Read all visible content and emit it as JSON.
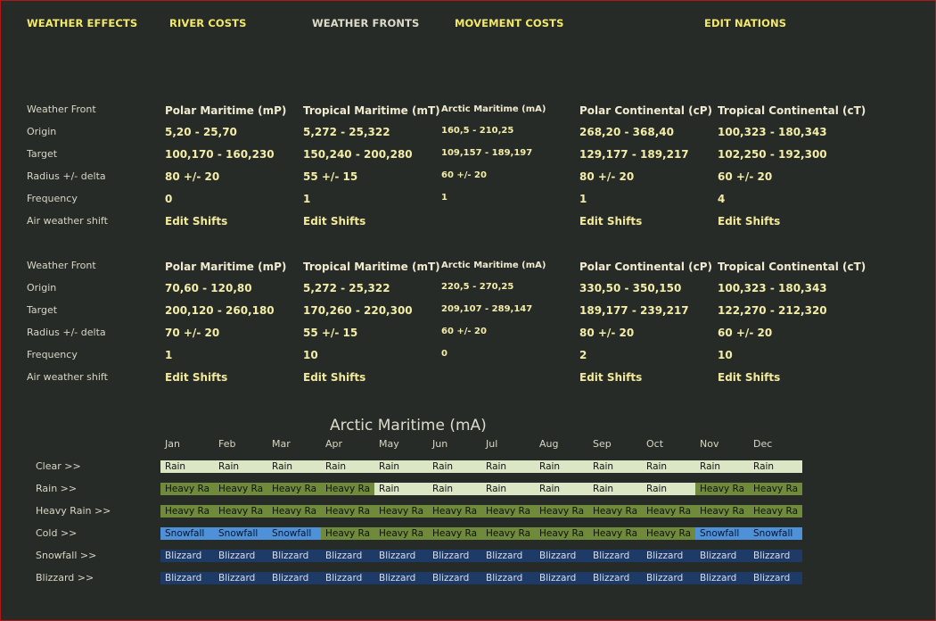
{
  "nav": [
    "WEATHER EFFECTS",
    "RIVER COSTS",
    "WEATHER FRONTS",
    "MOVEMENT COSTS",
    "EDIT NATIONS"
  ],
  "row_labels": [
    "Weather Front",
    "Origin",
    "Target",
    "Radius +/- delta",
    "Frequency",
    "Air weather shift"
  ],
  "groups": [
    {
      "columns": [
        {
          "name": "Polar Maritime (mP)",
          "origin": "5,20 - 25,70",
          "target": "100,170 - 160,230",
          "radius": "80 +/- 20",
          "frequency": "0",
          "air_shift": "Edit Shifts"
        },
        {
          "name": "Tropical Maritime (mT)",
          "origin": "5,272 - 25,322",
          "target": "150,240 - 200,280",
          "radius": "55 +/- 15",
          "frequency": "1",
          "air_shift": "Edit Shifts"
        },
        {
          "name": "Arctic Maritime (mA)",
          "origin": "160,5 - 210,25",
          "target": "109,157 - 189,197",
          "radius": "60 +/- 20",
          "frequency": "1",
          "air_shift": ""
        },
        {
          "name": "Polar Continental (cP)",
          "origin": "268,20 - 368,40",
          "target": "129,177 - 189,217",
          "radius": "80 +/- 20",
          "frequency": "1",
          "air_shift": "Edit Shifts"
        },
        {
          "name": "Tropical Continental (cT)",
          "origin": "100,323 - 180,343",
          "target": "102,250 - 192,300",
          "radius": "60 +/- 20",
          "frequency": "4",
          "air_shift": "Edit Shifts"
        }
      ]
    },
    {
      "columns": [
        {
          "name": "Polar Maritime (mP)",
          "origin": "70,60 - 120,80",
          "target": "200,120 - 260,180",
          "radius": "70 +/- 20",
          "frequency": "1",
          "air_shift": "Edit Shifts"
        },
        {
          "name": "Tropical Maritime (mT)",
          "origin": "5,272 - 25,322",
          "target": "170,260 - 220,300",
          "radius": "55 +/- 15",
          "frequency": "10",
          "air_shift": "Edit Shifts"
        },
        {
          "name": "Arctic Maritime (mA)",
          "origin": "220,5 - 270,25",
          "target": "209,107 - 289,147",
          "radius": "60 +/- 20",
          "frequency": "0",
          "air_shift": ""
        },
        {
          "name": "Polar Continental (cP)",
          "origin": "330,50 - 350,150",
          "target": "189,177 - 239,217",
          "radius": "80 +/- 20",
          "frequency": "2",
          "air_shift": "Edit Shifts"
        },
        {
          "name": "Tropical Continental (cT)",
          "origin": "100,323 - 180,343",
          "target": "122,270 - 212,320",
          "radius": "60 +/- 20",
          "frequency": "10",
          "air_shift": "Edit Shifts"
        }
      ]
    }
  ],
  "table": {
    "title": "Arctic Maritime (mA)",
    "months": [
      "Jan",
      "Feb",
      "Mar",
      "Apr",
      "May",
      "Jun",
      "Jul",
      "Aug",
      "Sep",
      "Oct",
      "Nov",
      "Dec"
    ],
    "rows": [
      {
        "label": "Clear >>",
        "cells": [
          "Rain",
          "Rain",
          "Rain",
          "Rain",
          "Rain",
          "Rain",
          "Rain",
          "Rain",
          "Rain",
          "Rain",
          "Rain",
          "Rain"
        ],
        "types": [
          "rain",
          "rain",
          "rain",
          "rain",
          "rain",
          "rain",
          "rain",
          "rain",
          "rain",
          "rain",
          "rain",
          "rain"
        ]
      },
      {
        "label": "Rain >>",
        "cells": [
          "Heavy Ra",
          "Heavy Ra",
          "Heavy Ra",
          "Heavy Ra",
          "Rain",
          "Rain",
          "Rain",
          "Rain",
          "Rain",
          "Rain",
          "Heavy Ra",
          "Heavy Ra"
        ],
        "types": [
          "heavy",
          "heavy",
          "heavy",
          "heavy",
          "rain",
          "rain",
          "rain",
          "rain",
          "rain",
          "rain",
          "heavy",
          "heavy"
        ]
      },
      {
        "label": "Heavy Rain >>",
        "cells": [
          "Heavy Ra",
          "Heavy Ra",
          "Heavy Ra",
          "Heavy Ra",
          "Heavy Ra",
          "Heavy Ra",
          "Heavy Ra",
          "Heavy Ra",
          "Heavy Ra",
          "Heavy Ra",
          "Heavy Ra",
          "Heavy Ra"
        ],
        "types": [
          "heavy",
          "heavy",
          "heavy",
          "heavy",
          "heavy",
          "heavy",
          "heavy",
          "heavy",
          "heavy",
          "heavy",
          "heavy",
          "heavy"
        ]
      },
      {
        "label": "Cold >>",
        "cells": [
          "Snowfall",
          "Snowfall",
          "Snowfall",
          "Heavy Ra",
          "Heavy Ra",
          "Heavy Ra",
          "Heavy Ra",
          "Heavy Ra",
          "Heavy Ra",
          "Heavy Ra",
          "Snowfall",
          "Snowfall"
        ],
        "types": [
          "snow",
          "snow",
          "snow",
          "heavy",
          "heavy",
          "heavy",
          "heavy",
          "heavy",
          "heavy",
          "heavy",
          "snow",
          "snow"
        ]
      },
      {
        "label": "Snowfall >>",
        "cells": [
          "Blizzard",
          "Blizzard",
          "Blizzard",
          "Blizzard",
          "Blizzard",
          "Blizzard",
          "Blizzard",
          "Blizzard",
          "Blizzard",
          "Blizzard",
          "Blizzard",
          "Blizzard"
        ],
        "types": [
          "bliz",
          "bliz",
          "bliz",
          "bliz",
          "bliz",
          "bliz",
          "bliz",
          "bliz",
          "bliz",
          "bliz",
          "bliz",
          "bliz"
        ]
      },
      {
        "label": "Blizzard >>",
        "cells": [
          "Blizzard",
          "Blizzard",
          "Blizzard",
          "Blizzard",
          "Blizzard",
          "Blizzard",
          "Blizzard",
          "Blizzard",
          "Blizzard",
          "Blizzard",
          "Blizzard",
          "Blizzard"
        ],
        "types": [
          "bliz",
          "bliz",
          "bliz",
          "bliz",
          "bliz",
          "bliz",
          "bliz",
          "bliz",
          "bliz",
          "bliz",
          "bliz",
          "bliz"
        ]
      }
    ]
  },
  "colors": {
    "rain": "#dbe6c4",
    "heavy": "#6e8a3a",
    "snow": "#4e91d9",
    "bliz": "#1e3a66",
    "nav_active": "#f2e86a"
  }
}
